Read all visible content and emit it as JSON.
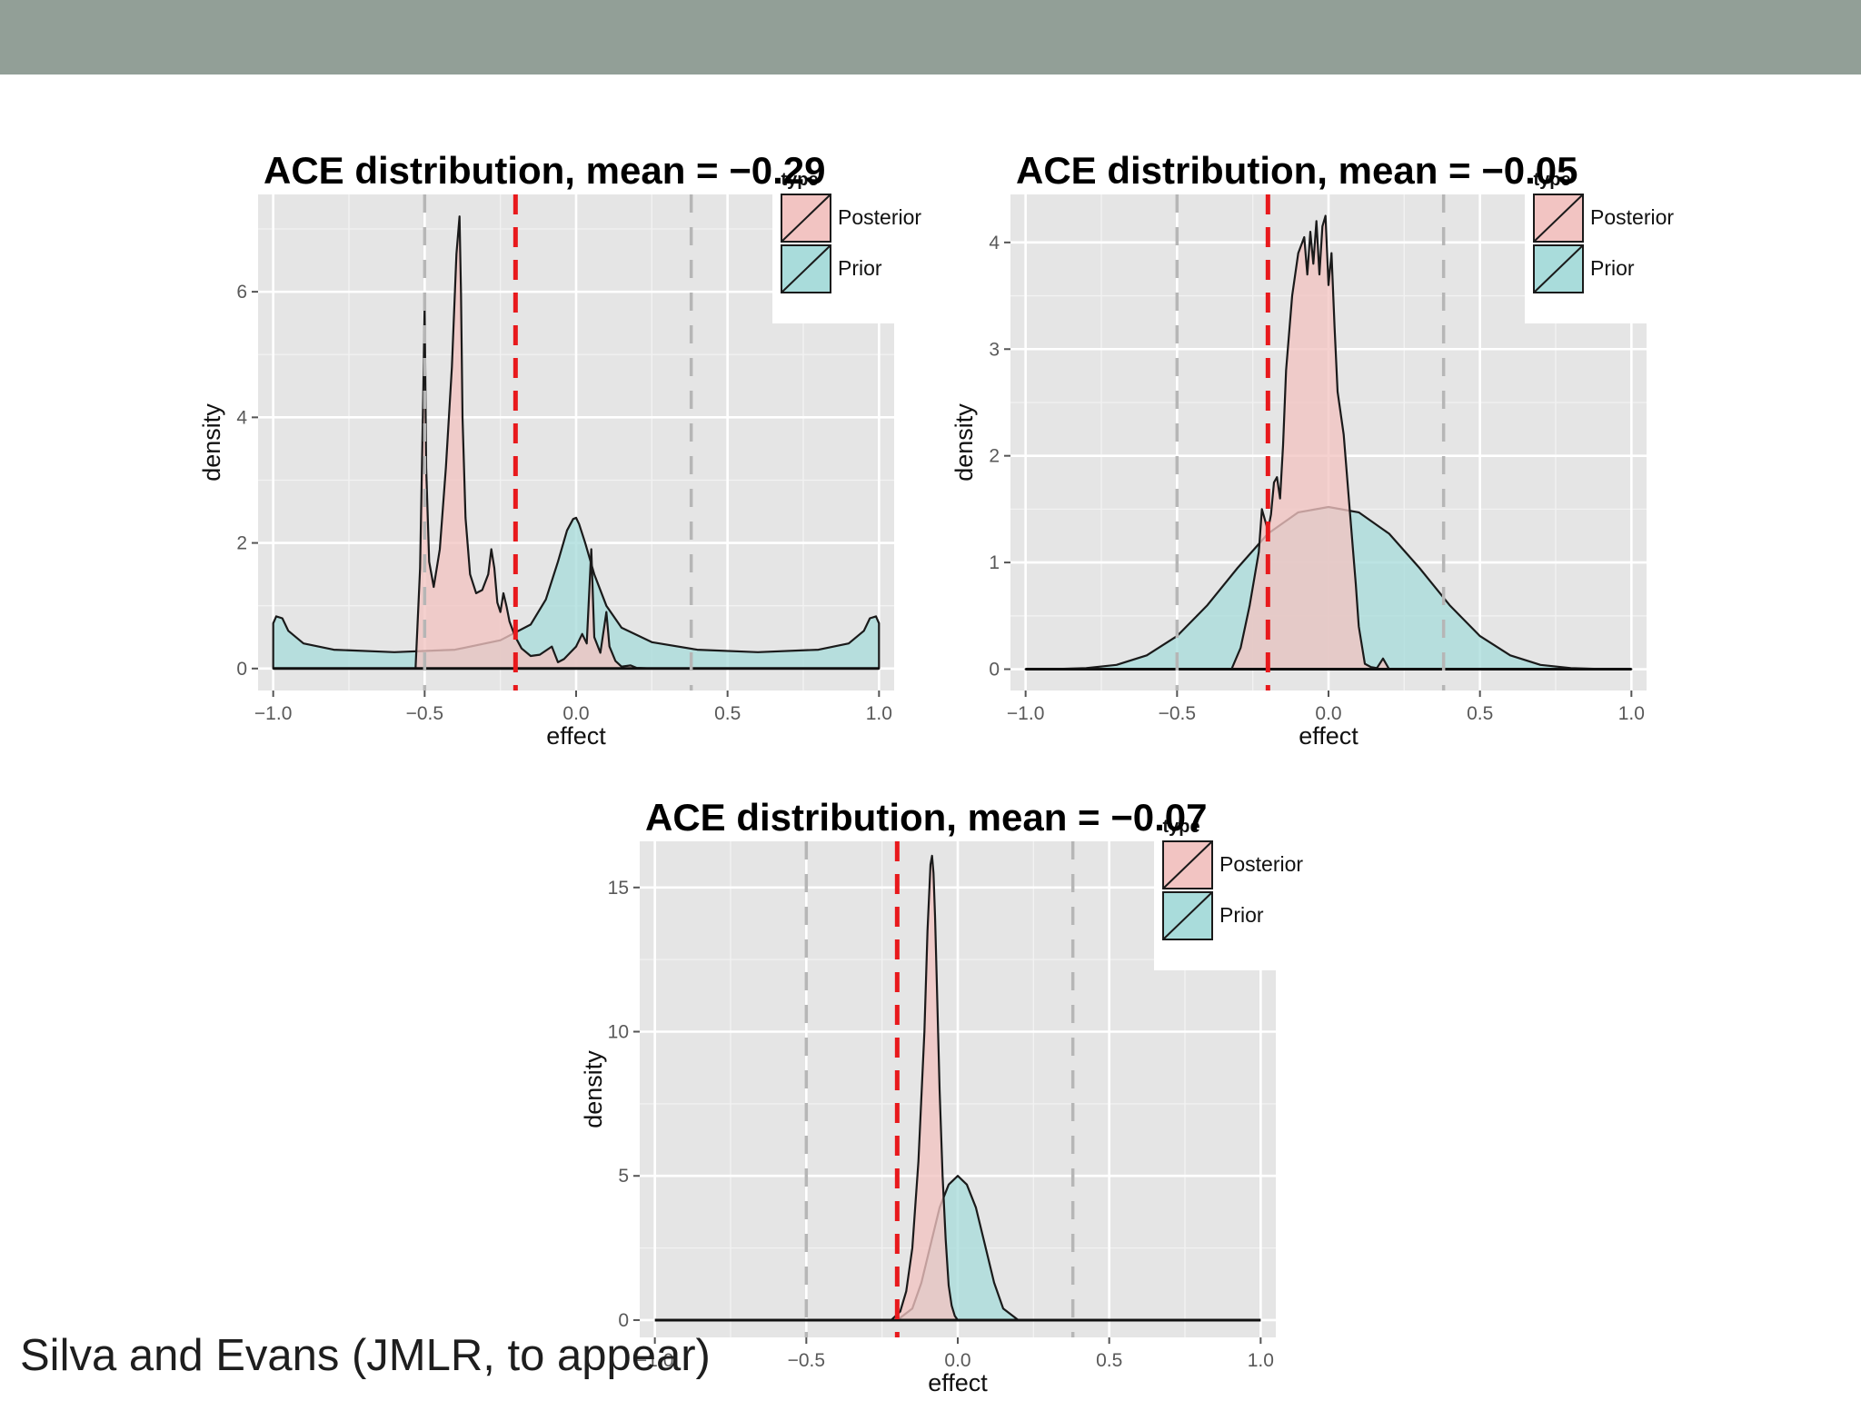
{
  "slide": {
    "citation": "Silva and Evans (JMLR, to appear)"
  },
  "colors": {
    "header_band": "#929f97",
    "panel_bg": "#e5e5e5",
    "posterior_fill": "#f2c4c2",
    "prior_fill": "#a9dcdb",
    "red_line": "#e8191c",
    "grey_line": "#b6b6b6"
  },
  "chart_data": [
    {
      "type": "area",
      "title": "ACE distribution, mean = −0.29",
      "xlabel": "effect",
      "ylabel": "density",
      "xlim": [
        -1.05,
        1.05
      ],
      "ylim": [
        -0.35,
        7.55
      ],
      "x_ticks": [
        -1.0,
        -0.5,
        0.0,
        0.5,
        1.0
      ],
      "x_tick_labels": [
        "−1.0",
        "−0.5",
        "0.0",
        "0.5",
        "1.0"
      ],
      "y_ticks": [
        0,
        2,
        4,
        6
      ],
      "y_tick_labels": [
        "0",
        "2",
        "4",
        "6"
      ],
      "grid": true,
      "legend": {
        "title": "type",
        "position": "top-right",
        "entries": [
          "Posterior",
          "Prior"
        ]
      },
      "vlines": [
        {
          "x": -0.5,
          "color": "#b6b6b6",
          "style": "dashed"
        },
        {
          "x": 0.38,
          "color": "#b6b6b6",
          "style": "dashed"
        },
        {
          "x": -0.2,
          "color": "#e8191c",
          "style": "dashed"
        }
      ],
      "series": [
        {
          "name": "Posterior",
          "color": "#f2c4c2",
          "x": [
            -0.53,
            -0.515,
            -0.505,
            -0.5,
            -0.495,
            -0.485,
            -0.47,
            -0.45,
            -0.43,
            -0.41,
            -0.395,
            -0.385,
            -0.38,
            -0.375,
            -0.365,
            -0.35,
            -0.33,
            -0.31,
            -0.29,
            -0.28,
            -0.27,
            -0.26,
            -0.25,
            -0.24,
            -0.23,
            -0.22,
            -0.21,
            -0.2,
            -0.18,
            -0.15,
            -0.12,
            -0.08,
            -0.06,
            -0.04,
            -0.02,
            0.0,
            0.02,
            0.035,
            0.05,
            0.06,
            0.08,
            0.1,
            0.11,
            0.13,
            0.15,
            0.18,
            0.2,
            0.25
          ],
          "y": [
            0.0,
            1.6,
            4.3,
            5.8,
            3.2,
            1.7,
            1.3,
            1.9,
            3.2,
            4.8,
            6.6,
            7.2,
            6.0,
            4.0,
            2.4,
            1.5,
            1.2,
            1.25,
            1.5,
            1.9,
            1.6,
            1.05,
            0.9,
            1.2,
            1.0,
            0.75,
            0.62,
            0.5,
            0.32,
            0.2,
            0.22,
            0.35,
            0.1,
            0.15,
            0.25,
            0.35,
            0.55,
            0.4,
            1.9,
            0.5,
            0.25,
            0.9,
            0.35,
            0.12,
            0.03,
            0.05,
            0.01,
            0.0
          ]
        },
        {
          "name": "Prior",
          "color": "#a9dcdb",
          "x": [
            -1.0,
            -0.99,
            -0.97,
            -0.95,
            -0.9,
            -0.8,
            -0.6,
            -0.4,
            -0.25,
            -0.15,
            -0.1,
            -0.06,
            -0.03,
            -0.01,
            0.0,
            0.01,
            0.03,
            0.06,
            0.1,
            0.15,
            0.25,
            0.4,
            0.6,
            0.8,
            0.9,
            0.95,
            0.97,
            0.99,
            1.0
          ],
          "y": [
            0.72,
            0.83,
            0.8,
            0.6,
            0.4,
            0.3,
            0.26,
            0.3,
            0.45,
            0.7,
            1.1,
            1.7,
            2.2,
            2.38,
            2.4,
            2.3,
            2.0,
            1.5,
            1.0,
            0.65,
            0.42,
            0.3,
            0.26,
            0.3,
            0.4,
            0.6,
            0.8,
            0.83,
            0.72
          ]
        }
      ]
    },
    {
      "type": "area",
      "title": "ACE distribution, mean = −0.05",
      "xlabel": "effect",
      "ylabel": "density",
      "xlim": [
        -1.05,
        1.05
      ],
      "ylim": [
        -0.2,
        4.45
      ],
      "x_ticks": [
        -1.0,
        -0.5,
        0.0,
        0.5,
        1.0
      ],
      "x_tick_labels": [
        "−1.0",
        "−0.5",
        "0.0",
        "0.5",
        "1.0"
      ],
      "y_ticks": [
        0,
        1,
        2,
        3,
        4
      ],
      "y_tick_labels": [
        "0",
        "1",
        "2",
        "3",
        "4"
      ],
      "grid": true,
      "legend": {
        "title": "type",
        "position": "top-right",
        "entries": [
          "Posterior",
          "Prior"
        ]
      },
      "vlines": [
        {
          "x": -0.5,
          "color": "#b6b6b6",
          "style": "dashed"
        },
        {
          "x": 0.38,
          "color": "#b6b6b6",
          "style": "dashed"
        },
        {
          "x": -0.2,
          "color": "#e8191c",
          "style": "dashed"
        }
      ],
      "series": [
        {
          "name": "Posterior",
          "color": "#f2c4c2",
          "x": [
            -0.32,
            -0.29,
            -0.26,
            -0.23,
            -0.22,
            -0.21,
            -0.2,
            -0.19,
            -0.18,
            -0.17,
            -0.16,
            -0.15,
            -0.14,
            -0.12,
            -0.1,
            -0.08,
            -0.07,
            -0.06,
            -0.05,
            -0.04,
            -0.03,
            -0.02,
            -0.01,
            0.0,
            0.01,
            0.02,
            0.03,
            0.05,
            0.07,
            0.09,
            0.1,
            0.12,
            0.14,
            0.16,
            0.18,
            0.2
          ],
          "y": [
            0.0,
            0.2,
            0.6,
            1.1,
            1.5,
            1.4,
            1.3,
            1.45,
            1.75,
            1.8,
            1.6,
            2.1,
            2.8,
            3.5,
            3.9,
            4.05,
            3.7,
            4.1,
            3.8,
            4.2,
            3.7,
            4.15,
            4.25,
            3.6,
            3.9,
            3.2,
            2.6,
            2.2,
            1.5,
            0.8,
            0.4,
            0.05,
            0.02,
            0.01,
            0.1,
            0.0
          ]
        },
        {
          "name": "Prior",
          "color": "#a9dcdb",
          "x": [
            -1.0,
            -0.9,
            -0.8,
            -0.7,
            -0.6,
            -0.5,
            -0.4,
            -0.3,
            -0.2,
            -0.1,
            0.0,
            0.1,
            0.2,
            0.3,
            0.4,
            0.5,
            0.6,
            0.7,
            0.8,
            0.9,
            1.0
          ],
          "y": [
            0.0,
            0.002,
            0.01,
            0.04,
            0.13,
            0.31,
            0.6,
            0.95,
            1.27,
            1.47,
            1.52,
            1.47,
            1.27,
            0.95,
            0.6,
            0.31,
            0.13,
            0.04,
            0.01,
            0.002,
            0.0
          ]
        }
      ]
    },
    {
      "type": "area",
      "title": "ACE distribution, mean = −0.07",
      "xlabel": "effect",
      "ylabel": "density",
      "xlim": [
        -1.05,
        1.05
      ],
      "ylim": [
        -0.6,
        16.6
      ],
      "x_ticks": [
        -1.0,
        -0.5,
        0.0,
        0.5,
        1.0
      ],
      "x_tick_labels": [
        "−1.0",
        "−0.5",
        "0.0",
        "0.5",
        "1.0"
      ],
      "y_ticks": [
        0,
        5,
        10,
        15
      ],
      "y_tick_labels": [
        "0",
        "5",
        "10",
        "15"
      ],
      "grid": true,
      "legend": {
        "title": "type",
        "position": "top-right",
        "entries": [
          "Posterior",
          "Prior"
        ]
      },
      "vlines": [
        {
          "x": -0.5,
          "color": "#b6b6b6",
          "style": "dashed"
        },
        {
          "x": 0.38,
          "color": "#b6b6b6",
          "style": "dashed"
        },
        {
          "x": -0.2,
          "color": "#e8191c",
          "style": "dashed"
        }
      ],
      "series": [
        {
          "name": "Posterior",
          "color": "#f2c4c2",
          "x": [
            -0.22,
            -0.19,
            -0.17,
            -0.15,
            -0.13,
            -0.11,
            -0.1,
            -0.09,
            -0.085,
            -0.08,
            -0.075,
            -0.07,
            -0.06,
            -0.05,
            -0.04,
            -0.03,
            -0.02,
            -0.01,
            0.0
          ],
          "y": [
            0.0,
            0.3,
            1.0,
            2.5,
            5.5,
            10.0,
            13.5,
            15.8,
            16.1,
            15.5,
            14.0,
            12.0,
            8.0,
            5.0,
            2.8,
            1.2,
            0.5,
            0.15,
            0.0
          ]
        },
        {
          "name": "Prior",
          "color": "#a9dcdb",
          "x": [
            -0.2,
            -0.15,
            -0.12,
            -0.09,
            -0.06,
            -0.03,
            0.0,
            0.03,
            0.06,
            0.09,
            0.12,
            0.15,
            0.2
          ],
          "y": [
            0.0,
            0.4,
            1.3,
            2.6,
            3.9,
            4.7,
            5.0,
            4.7,
            3.9,
            2.6,
            1.3,
            0.4,
            0.0
          ]
        }
      ]
    }
  ]
}
